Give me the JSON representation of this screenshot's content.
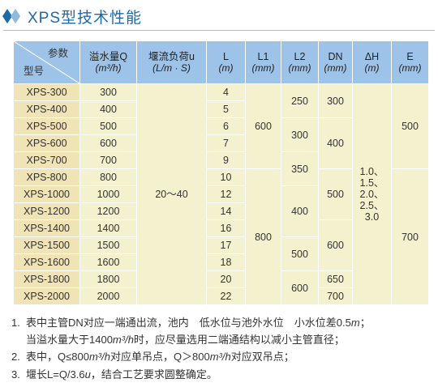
{
  "title": "XPS型技术性能",
  "headers": {
    "params": "参数",
    "model": "型号",
    "flow": "溢水量Q",
    "flow_unit": "(m³/h)",
    "weir_load": "堰流负荷u",
    "weir_load_unit": "(L/m · S)",
    "L": "L",
    "L_unit": "(m)",
    "L1": "L1",
    "L1_unit": "(mm)",
    "L2": "L2",
    "L2_unit": "(mm)",
    "DN": "DN",
    "DN_unit": "(mm)",
    "dH": "ΔH",
    "dH_unit": "(m)",
    "E": "E",
    "E_unit": "(mm)"
  },
  "rows": [
    {
      "model": "XPS-300",
      "flow": "300",
      "L": "4"
    },
    {
      "model": "XPS-400",
      "flow": "400",
      "L": "5"
    },
    {
      "model": "XPS-500",
      "flow": "500",
      "L": "6"
    },
    {
      "model": "XPS-600",
      "flow": "600",
      "L": "7"
    },
    {
      "model": "XPS-700",
      "flow": "700",
      "L": "9"
    },
    {
      "model": "XPS-800",
      "flow": "800",
      "L": "10"
    },
    {
      "model": "XPS-1000",
      "flow": "1000",
      "L": "12"
    },
    {
      "model": "XPS-1200",
      "flow": "1200",
      "L": "14"
    },
    {
      "model": "XPS-1400",
      "flow": "1400",
      "L": "16"
    },
    {
      "model": "XPS-1500",
      "flow": "1500",
      "L": "17"
    },
    {
      "model": "XPS-1600",
      "flow": "1600",
      "L": "18"
    },
    {
      "model": "XPS-1800",
      "flow": "1800",
      "L": "20"
    },
    {
      "model": "XPS-2000",
      "flow": "2000",
      "L": "22"
    }
  ],
  "merged": {
    "weir_load": "20～40",
    "L1": [
      "600",
      "800"
    ],
    "L2": [
      "250",
      "300",
      "350",
      "400",
      "500",
      "600"
    ],
    "DN": [
      "300",
      "400",
      "500",
      "600",
      "650",
      "700"
    ],
    "dH": [
      "1.0、",
      "1.5、",
      "2.0、",
      "2.5、",
      "3.0"
    ],
    "E": [
      "500",
      "700"
    ]
  },
  "notes": {
    "n1_num": "1.",
    "n1_line1": "表中主管DN对应一端通出流，池内　低水位与池外水位　小水位差0.5",
    "n1_line1_unit": "m",
    "n1_line1_end": "；",
    "n1_line2_a": "当溢水量大于1400",
    "n1_line2_unit": "m³/h",
    "n1_line2_b": "时，应尽量选用二端通结构以减小主管直径；",
    "n2_num": "2.",
    "n2_a": "表中，Q≤800",
    "n2_unit1": "m³/h",
    "n2_b": "对应单吊点，Q＞800",
    "n2_unit2": "m³/h",
    "n2_c": "对应双吊点；",
    "n3_num": "3.",
    "n3_a": "堰长L=Q/3.6",
    "n3_unit": "u",
    "n3_b": "，结合工艺要求圆整确定。"
  }
}
